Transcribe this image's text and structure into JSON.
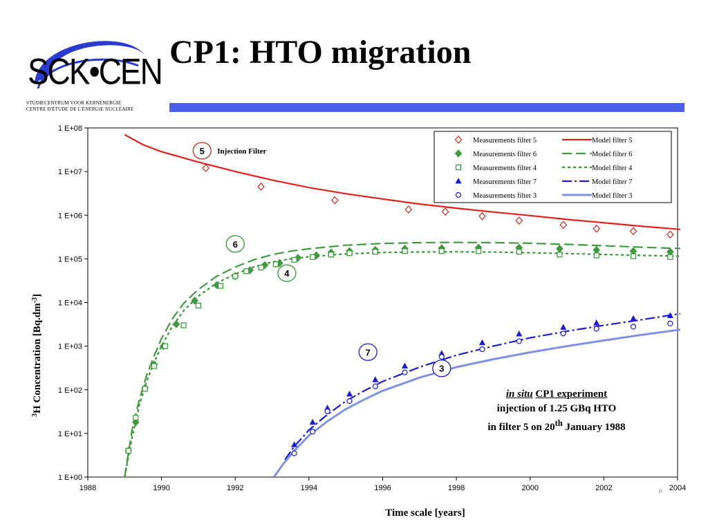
{
  "logo": {
    "text": "SCK•CEN",
    "line1": "STUDIECENTRUM VOOR KERNENERGIE",
    "line2": "CENTRE D'ÉTUDE DE L'ÉNERGIE NUCLÉAIRE"
  },
  "slide": {
    "title": "CP1: HTO migration",
    "page_label": "p."
  },
  "colors": {
    "accent_bar": "#4a60e8",
    "f5": "#e0201b",
    "f6": "#3f9a3f",
    "f4": "#2e9a2e",
    "f7": "#1a1adc",
    "f3": "#8090e0"
  },
  "note": {
    "l1a": "in situ",
    "l1b": "CP1  experiment",
    "l2": "injection of 1.25 GBq HTO",
    "l3a": "in filter 5 on 20",
    "l3sup": "th",
    "l3b": " January 1988"
  },
  "chart_data": {
    "type": "scatter",
    "title": "",
    "xlabel": "Time scale [years]",
    "ylabel_sup": "3",
    "ylabel": "H Concentration [Bq.dm",
    "ylabel_sup2": "-3",
    "ylabel_end": "]",
    "xlim": [
      1988,
      2004
    ],
    "ylim_log10": [
      0,
      8
    ],
    "x_ticks": [
      "1988",
      "1990",
      "1992",
      "1994",
      "1996",
      "1998",
      "2000",
      "2002",
      "2004"
    ],
    "y_ticks": [
      "1 E+00",
      "1 E+01",
      "1 E+02",
      "1 E+03",
      "1 E+04",
      "1 E+05",
      "1 E+06",
      "1 E+07",
      "1 E+08"
    ],
    "legend_position": "top-right",
    "annotations": [
      {
        "label": "5",
        "x": 1991.1,
        "y": 30000000.0,
        "text": "Injection Filter"
      },
      {
        "label": "6",
        "x": 1992.0,
        "y": 220000.0
      },
      {
        "label": "4",
        "x": 1993.4,
        "y": 47000.0
      },
      {
        "label": "7",
        "x": 1995.6,
        "y": 730.0
      },
      {
        "label": "3",
        "x": 1997.6,
        "y": 310.0
      }
    ],
    "series": [
      {
        "name": "Measurements filter 5",
        "kind": "points",
        "marker": "diamond-open",
        "color": "#e0201b",
        "x": [
          1991.2,
          1992.7,
          1994.7,
          1996.7,
          1997.7,
          1998.7,
          1999.7,
          2000.9,
          2001.8,
          2002.8,
          2003.8
        ],
        "y": [
          12000000.0,
          4500000.0,
          2200000.0,
          1350000.0,
          1200000.0,
          950000.0,
          750000.0,
          600000.0,
          490000.0,
          430000.0,
          360000.0
        ]
      },
      {
        "name": "Model filter 5",
        "kind": "line",
        "dash": "",
        "color": "#e0201b",
        "x": [
          1989.0,
          1989.5,
          1990.0,
          1991.0,
          1992.0,
          1993.0,
          1994.0,
          1995.0,
          1996.0,
          1997.0,
          1998.0,
          1999.0,
          2000.0,
          2001.0,
          2002.0,
          2003.0,
          2004.1
        ],
        "y": [
          70000000.0,
          41000000.0,
          28500000.0,
          16500000.0,
          10000000.0,
          6400000.0,
          4300000.0,
          3100000.0,
          2350000.0,
          1800000.0,
          1450000.0,
          1180000.0,
          980000.0,
          800000.0,
          670000.0,
          560000.0,
          470000.0
        ]
      },
      {
        "name": "Measurements filter 6",
        "kind": "points",
        "marker": "diamond-filled",
        "color": "#3f9a3f",
        "x": [
          1989.1,
          1989.3,
          1989.55,
          1989.8,
          1990.05,
          1990.4,
          1990.9,
          1991.5,
          1992.0,
          1992.4,
          1992.8,
          1993.2,
          1993.7,
          1994.2,
          1994.6,
          1995.1,
          1995.8,
          1996.6,
          1997.6,
          1998.6,
          1999.7,
          2000.8,
          2001.8,
          2002.8,
          2003.8
        ],
        "y": [
          4,
          18,
          110,
          380,
          1000,
          3200,
          11000,
          25000,
          40000,
          55000,
          72000,
          80000,
          105000,
          120000,
          140000,
          150000,
          160000,
          170000,
          175000,
          180000,
          180000,
          170000,
          160000,
          150000,
          145000
        ]
      },
      {
        "name": "Model filter 6",
        "kind": "line",
        "dash": "14,6",
        "color": "#3f9a3f",
        "x": [
          1989.0,
          1989.2,
          1989.4,
          1989.6,
          1989.8,
          1990.0,
          1990.3,
          1990.6,
          1991.0,
          1991.5,
          1992.0,
          1992.5,
          1993.0,
          1993.5,
          1994.0,
          1995.0,
          1996.0,
          1997.0,
          1998.0,
          1999.0,
          2000.0,
          2001.0,
          2002.0,
          2003.0,
          2004.1
        ],
        "y": [
          1,
          12,
          60,
          220,
          600,
          1500,
          4300,
          9500,
          20000,
          40000,
          65000,
          95000,
          125000,
          150000,
          170000,
          205000,
          225000,
          235000,
          238000,
          235000,
          228000,
          215000,
          200000,
          185000,
          172000
        ]
      },
      {
        "name": "Measurements filter 4",
        "kind": "points",
        "marker": "square-open",
        "color": "#2e9a2e",
        "x": [
          1989.1,
          1989.3,
          1989.55,
          1989.8,
          1990.1,
          1990.6,
          1991.0,
          1991.6,
          1992.0,
          1992.3,
          1992.7,
          1993.1,
          1993.6,
          1994.1,
          1994.6,
          1995.1,
          1995.8,
          1996.6,
          1997.6,
          1998.6,
          1999.7,
          2000.8,
          2001.8,
          2002.8,
          2003.8
        ],
        "y": [
          4,
          23,
          105,
          350,
          1000,
          3000,
          8500,
          24000,
          40000,
          52000,
          63000,
          75000,
          95000,
          110000,
          125000,
          135000,
          145000,
          150000,
          150000,
          150000,
          145000,
          125000,
          120000,
          115000,
          110000
        ]
      },
      {
        "name": "Model filter 4",
        "kind": "line",
        "dash": "4,4",
        "color": "#2e9a2e",
        "x": [
          1989.0,
          1989.2,
          1989.4,
          1989.6,
          1989.8,
          1990.0,
          1990.3,
          1990.6,
          1991.0,
          1991.5,
          1992.0,
          1992.5,
          1993.0,
          1993.5,
          1994.0,
          1995.0,
          1996.0,
          1997.0,
          1998.0,
          1999.0,
          2000.0,
          2001.0,
          2002.0,
          2003.0,
          2004.1
        ],
        "y": [
          1,
          8,
          45,
          160,
          430,
          1000,
          2900,
          6500,
          14000,
          28000,
          45000,
          65000,
          85000,
          100000,
          112000,
          130000,
          140000,
          144000,
          145000,
          143000,
          138000,
          132000,
          126000,
          120000,
          115000
        ]
      },
      {
        "name": "Measurements filter 7",
        "kind": "points",
        "marker": "triangle-filled",
        "color": "#1a1adc",
        "x": [
          1993.6,
          1994.1,
          1994.5,
          1995.1,
          1995.8,
          1996.6,
          1997.6,
          1998.7,
          1999.7,
          2000.9,
          2001.8,
          2002.8,
          2003.8
        ],
        "y": [
          5.5,
          18,
          38,
          80,
          170,
          350,
          680,
          1200,
          1900,
          2700,
          3400,
          4300,
          5000
        ]
      },
      {
        "name": "Model filter 7",
        "kind": "line",
        "dash": "14,4,3,4",
        "color": "#1a1adc",
        "x": [
          1993.35,
          1993.6,
          1994.0,
          1994.5,
          1995.0,
          1995.5,
          1996.0,
          1997.0,
          1998.0,
          1999.0,
          2000.0,
          2001.0,
          2002.0,
          2003.0,
          2004.1
        ],
        "y": [
          2.5,
          5,
          12,
          27,
          55,
          95,
          155,
          330,
          620,
          1000,
          1550,
          2200,
          3000,
          4000,
          5600
        ]
      },
      {
        "name": "Measurements filter 3",
        "kind": "points",
        "marker": "circle-open",
        "color": "#1a1adc",
        "x": [
          1993.6,
          1994.1,
          1994.5,
          1995.1,
          1995.8,
          1996.6,
          1997.6,
          1998.7,
          1999.7,
          2000.9,
          2001.8,
          2002.8,
          2003.8
        ],
        "y": [
          3.5,
          11,
          32,
          55,
          120,
          250,
          570,
          850,
          1300,
          1950,
          2500,
          2800,
          3300
        ]
      },
      {
        "name": "Model filter 3",
        "kind": "line",
        "dash": "",
        "color": "#8090e0",
        "x": [
          1993.05,
          1993.3,
          1993.6,
          1994.0,
          1994.5,
          1995.0,
          1995.5,
          1996.0,
          1997.0,
          1998.0,
          1999.0,
          2000.0,
          2001.0,
          2002.0,
          2003.0,
          2004.1
        ],
        "y": [
          1,
          2,
          4,
          9,
          19,
          36,
          60,
          95,
          190,
          330,
          500,
          720,
          1000,
          1350,
          1800,
          2400
        ]
      }
    ]
  }
}
